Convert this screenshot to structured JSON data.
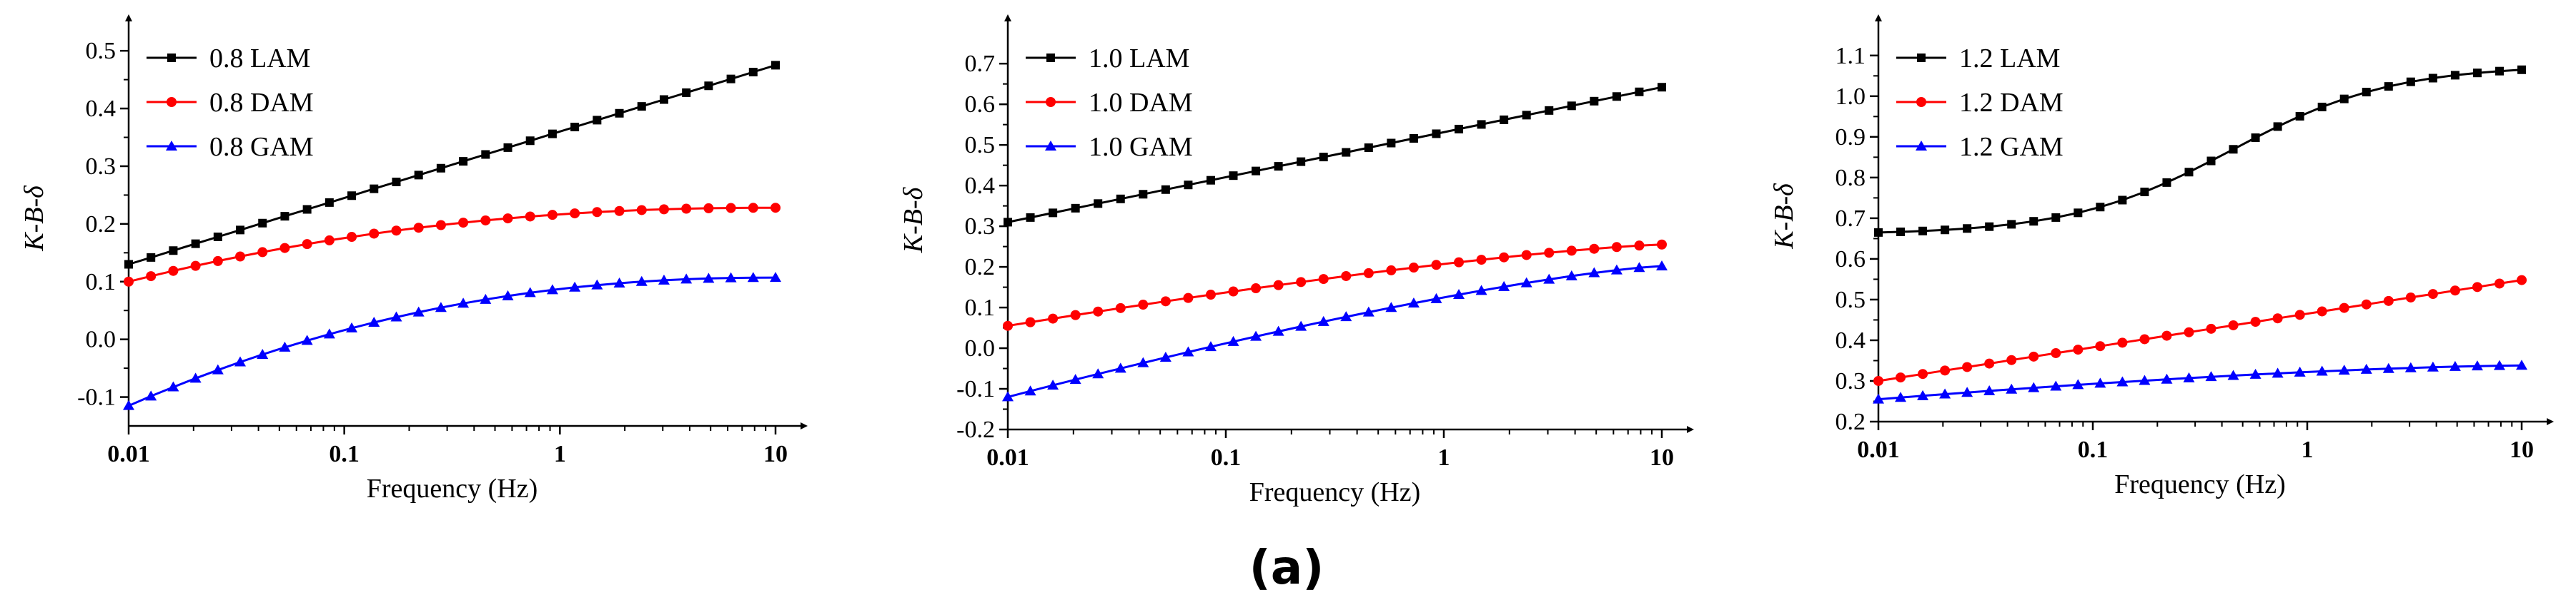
{
  "caption": "(a)",
  "colors": {
    "LAM": "#000000",
    "DAM": "#ff0000",
    "GAM": "#0000ff",
    "axis": "#000000"
  },
  "chart_data": [
    {
      "type": "line",
      "xscale": "log",
      "xlabel": "Frequency (Hz)",
      "ylabel": "K-B-δ",
      "xticks": [
        0.01,
        0.1,
        1,
        10
      ],
      "xtick_labels": [
        "0.01",
        "0.1",
        "1",
        "10"
      ],
      "ylim": [
        -0.15,
        0.52
      ],
      "yticks": [
        -0.1,
        0.0,
        0.1,
        0.2,
        0.3,
        0.4,
        0.5
      ],
      "ytick_labels": [
        "-0.1",
        "0.0",
        "0.1",
        "0.2",
        "0.3",
        "0.4",
        "0.5"
      ],
      "legend": "top-left",
      "series": [
        {
          "name": "0.8 LAM",
          "key": "LAM",
          "marker": "square",
          "start": 0.13,
          "end": 0.475,
          "curve": "linear"
        },
        {
          "name": "0.8 DAM",
          "key": "DAM",
          "marker": "circle",
          "start": 0.1,
          "end": 0.228,
          "curve": "saturating"
        },
        {
          "name": "0.8 GAM",
          "key": "GAM",
          "marker": "triangle",
          "start": -0.115,
          "end": 0.107,
          "curve": "saturating"
        }
      ]
    },
    {
      "type": "line",
      "xscale": "log",
      "xlabel": "Frequency (Hz)",
      "ylabel": "K-B-δ",
      "xticks": [
        0.01,
        0.1,
        1,
        10
      ],
      "xtick_labels": [
        "0.01",
        "0.1",
        "1",
        "10"
      ],
      "ylim": [
        -0.2,
        0.76
      ],
      "yticks": [
        -0.2,
        -0.1,
        0.0,
        0.1,
        0.2,
        0.3,
        0.4,
        0.5,
        0.6,
        0.7
      ],
      "ytick_labels": [
        "-0.2",
        "-0.1",
        "0.0",
        "0.1",
        "0.2",
        "0.3",
        "0.4",
        "0.5",
        "0.6",
        "0.7"
      ],
      "legend": "top-left",
      "series": [
        {
          "name": "1.0 LAM",
          "key": "LAM",
          "marker": "square",
          "start": 0.31,
          "end": 0.642,
          "curve": "linear"
        },
        {
          "name": "1.0 DAM",
          "key": "DAM",
          "marker": "circle",
          "start": 0.055,
          "end": 0.255,
          "curve": "mild"
        },
        {
          "name": "1.0 GAM",
          "key": "GAM",
          "marker": "triangle",
          "start": -0.12,
          "end": 0.202,
          "curve": "mild"
        }
      ]
    },
    {
      "type": "line",
      "xscale": "log",
      "xlabel": "Frequency (Hz)",
      "ylabel": "K-B-δ",
      "xticks": [
        0.01,
        0.1,
        1,
        10
      ],
      "xtick_labels": [
        "0.01",
        "0.1",
        "1",
        "10"
      ],
      "ylim": [
        0.2,
        1.14
      ],
      "yticks": [
        0.2,
        0.3,
        0.4,
        0.5,
        0.6,
        0.7,
        0.8,
        0.9,
        1.0,
        1.1
      ],
      "ytick_labels": [
        "0.2",
        "0.3",
        "0.4",
        "0.5",
        "0.6",
        "0.7",
        "0.8",
        "0.9",
        "1.0",
        "1.1"
      ],
      "legend": "top-left",
      "series": [
        {
          "name": "1.2 LAM",
          "key": "LAM",
          "marker": "square",
          "start": 0.665,
          "end": 1.065,
          "curve": "sigmoid"
        },
        {
          "name": "1.2 DAM",
          "key": "DAM",
          "marker": "circle",
          "start": 0.3,
          "end": 0.548,
          "curve": "linear"
        },
        {
          "name": "1.2 GAM",
          "key": "GAM",
          "marker": "triangle",
          "start": 0.255,
          "end": 0.338,
          "curve": "mildsat"
        }
      ]
    }
  ]
}
